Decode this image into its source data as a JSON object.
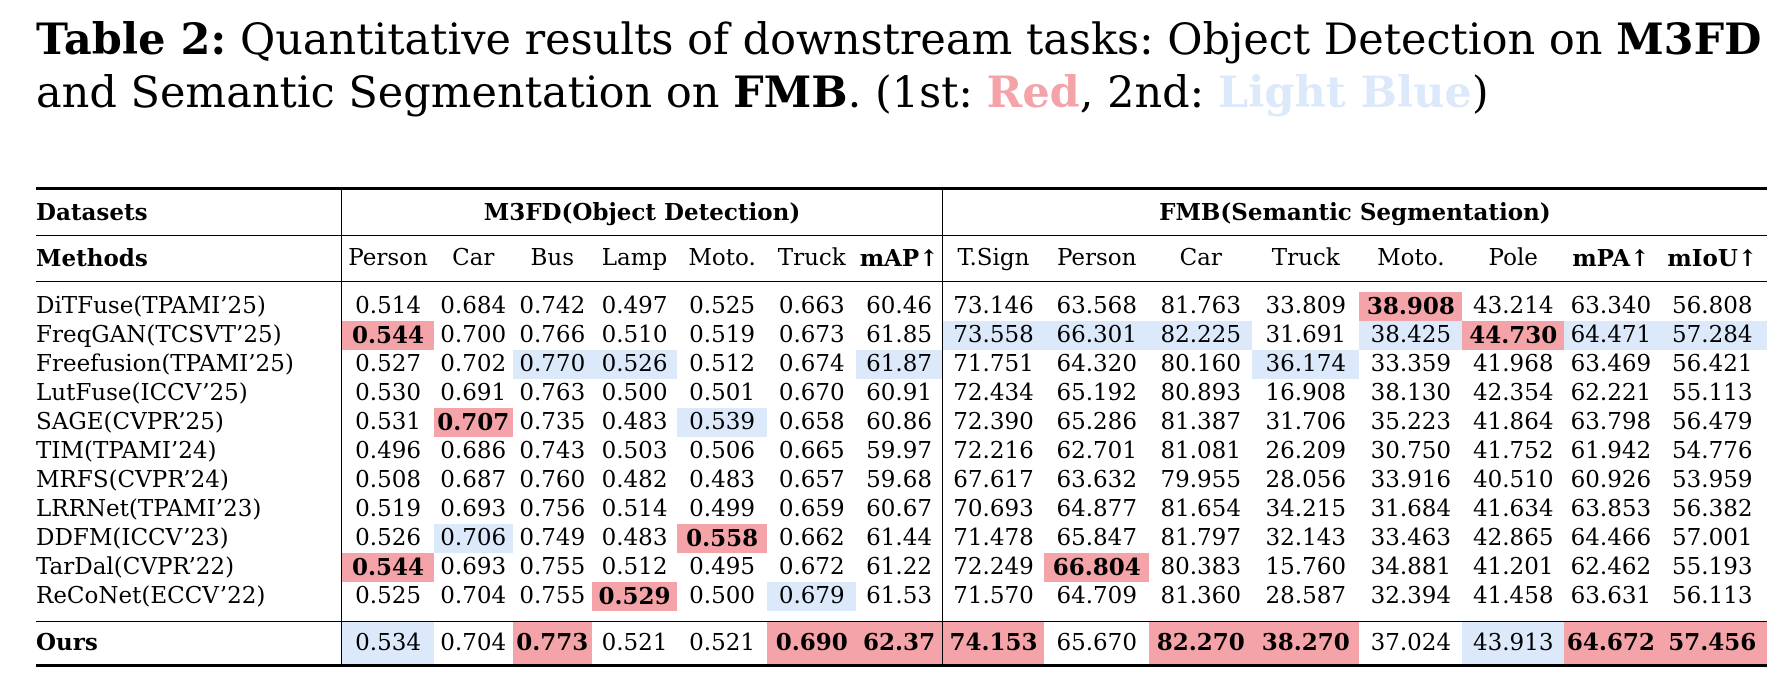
{
  "caption": {
    "label": "Table 2:",
    "text_a": " Quantitative results of downstream tasks: Object Detection on ",
    "m3fd": "M3FD",
    "text_b": " and Semantic Segmentation on ",
    "fmb": "FMB",
    "text_c": ". (1st: ",
    "red_word": "Red",
    "text_d": ", 2nd: ",
    "blue_word": "Light Blue",
    "text_e": ")"
  },
  "colors": {
    "first": "#f4a3a8",
    "second": "#dce9fb"
  },
  "table": {
    "datasets_label": "Datasets",
    "group_left": "M3FD(Object Detection)",
    "group_right": "FMB(Semantic Segmentation)",
    "methods_label": "Methods",
    "columns": [
      "Person",
      "Car",
      "Bus",
      "Lamp",
      "Moto.",
      "Truck",
      "mAP↑",
      "T.Sign",
      "Person",
      "Car",
      "Truck",
      "Moto.",
      "Pole",
      "mPA↑",
      "mIoU↑"
    ],
    "rows": [
      {
        "method": "DiTFuse(TPAMI’25)",
        "values": [
          "0.514",
          "0.684",
          "0.742",
          "0.497",
          "0.525",
          "0.663",
          "60.46",
          "73.146",
          "63.568",
          "81.763",
          "33.809",
          "38.908",
          "43.214",
          "63.340",
          "56.808"
        ]
      },
      {
        "method": "FreqGAN(TCSVT’25)",
        "values": [
          "0.544",
          "0.700",
          "0.766",
          "0.510",
          "0.519",
          "0.673",
          "61.85",
          "73.558",
          "66.301",
          "82.225",
          "31.691",
          "38.425",
          "44.730",
          "64.471",
          "57.284"
        ]
      },
      {
        "method": "Freefusion(TPAMI’25)",
        "values": [
          "0.527",
          "0.702",
          "0.770",
          "0.526",
          "0.512",
          "0.674",
          "61.87",
          "71.751",
          "64.320",
          "80.160",
          "36.174",
          "33.359",
          "41.968",
          "63.469",
          "56.421"
        ]
      },
      {
        "method": "LutFuse(ICCV’25)",
        "values": [
          "0.530",
          "0.691",
          "0.763",
          "0.500",
          "0.501",
          "0.670",
          "60.91",
          "72.434",
          "65.192",
          "80.893",
          "16.908",
          "38.130",
          "42.354",
          "62.221",
          "55.113"
        ]
      },
      {
        "method": "SAGE(CVPR’25)",
        "values": [
          "0.531",
          "0.707",
          "0.735",
          "0.483",
          "0.539",
          "0.658",
          "60.86",
          "72.390",
          "65.286",
          "81.387",
          "31.706",
          "35.223",
          "41.864",
          "63.798",
          "56.479"
        ]
      },
      {
        "method": "TIM(TPAMI’24)",
        "values": [
          "0.496",
          "0.686",
          "0.743",
          "0.503",
          "0.506",
          "0.665",
          "59.97",
          "72.216",
          "62.701",
          "81.081",
          "26.209",
          "30.750",
          "41.752",
          "61.942",
          "54.776"
        ]
      },
      {
        "method": "MRFS(CVPR’24)",
        "values": [
          "0.508",
          "0.687",
          "0.760",
          "0.482",
          "0.483",
          "0.657",
          "59.68",
          "67.617",
          "63.632",
          "79.955",
          "28.056",
          "33.916",
          "40.510",
          "60.926",
          "53.959"
        ]
      },
      {
        "method": "LRRNet(TPAMI’23)",
        "values": [
          "0.519",
          "0.693",
          "0.756",
          "0.514",
          "0.499",
          "0.659",
          "60.67",
          "70.693",
          "64.877",
          "81.654",
          "34.215",
          "31.684",
          "41.634",
          "63.853",
          "56.382"
        ]
      },
      {
        "method": "DDFM(ICCV’23)",
        "values": [
          "0.526",
          "0.706",
          "0.749",
          "0.483",
          "0.558",
          "0.662",
          "61.44",
          "71.478",
          "65.847",
          "81.797",
          "32.143",
          "33.463",
          "42.865",
          "64.466",
          "57.001"
        ]
      },
      {
        "method": "TarDal(CVPR’22)",
        "values": [
          "0.544",
          "0.693",
          "0.755",
          "0.512",
          "0.495",
          "0.672",
          "61.22",
          "72.249",
          "66.804",
          "80.383",
          "15.760",
          "34.881",
          "41.201",
          "62.462",
          "55.193"
        ]
      },
      {
        "method": "ReCoNet(ECCV’22)",
        "values": [
          "0.525",
          "0.704",
          "0.755",
          "0.529",
          "0.500",
          "0.679",
          "61.53",
          "71.570",
          "64.709",
          "81.360",
          "28.587",
          "32.394",
          "41.458",
          "63.631",
          "56.113"
        ]
      }
    ],
    "ours": {
      "method": "Ours",
      "values": [
        "0.534",
        "0.704",
        "0.773",
        "0.521",
        "0.521",
        "0.690",
        "62.37",
        "74.153",
        "65.670",
        "82.270",
        "38.270",
        "37.024",
        "43.913",
        "64.672",
        "57.456"
      ]
    },
    "highlights": {
      "first": [
        [
          1,
          0
        ],
        [
          9,
          0
        ],
        [
          4,
          1
        ],
        [
          10,
          3
        ],
        [
          8,
          4
        ],
        [
          0,
          11
        ],
        [
          1,
          12
        ],
        [
          9,
          8
        ],
        [
          11,
          2
        ],
        [
          11,
          5
        ],
        [
          11,
          6
        ],
        [
          11,
          7
        ],
        [
          11,
          9
        ],
        [
          11,
          10
        ],
        [
          11,
          13
        ],
        [
          11,
          14
        ]
      ],
      "second": [
        [
          11,
          0
        ],
        [
          8,
          1
        ],
        [
          2,
          2
        ],
        [
          2,
          3
        ],
        [
          4,
          4
        ],
        [
          10,
          5
        ],
        [
          2,
          6
        ],
        [
          1,
          7
        ],
        [
          1,
          8
        ],
        [
          1,
          9
        ],
        [
          2,
          10
        ],
        [
          1,
          11
        ],
        [
          11,
          12
        ],
        [
          1,
          13
        ],
        [
          1,
          14
        ]
      ]
    }
  }
}
